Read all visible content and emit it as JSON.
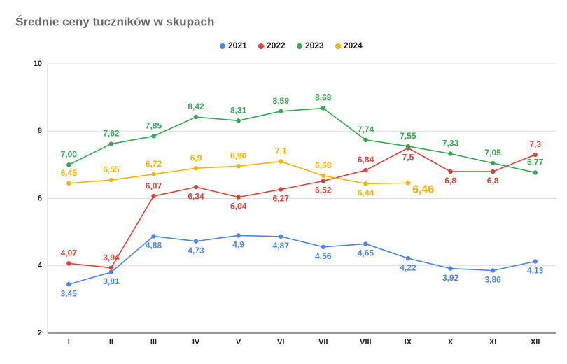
{
  "chart_data": {
    "type": "line",
    "title": "Średnie ceny tuczników w skupach",
    "categories": [
      "I",
      "II",
      "III",
      "IV",
      "V",
      "VI",
      "VII",
      "VIII",
      "IX",
      "X",
      "XI",
      "XII"
    ],
    "series": [
      {
        "name": "2021",
        "color": "#4a86e8",
        "values": [
          3.45,
          3.81,
          4.88,
          4.73,
          4.9,
          4.87,
          4.56,
          4.65,
          4.22,
          3.92,
          3.86,
          4.13
        ],
        "value_labels": [
          "3,45",
          "3,81",
          "4,88",
          "4,73",
          "4,9",
          "4,87",
          "4,56",
          "4,65",
          "4,22",
          "3,92",
          "3,86",
          "4,13"
        ]
      },
      {
        "name": "2022",
        "color": "#db4437",
        "values": [
          4.07,
          3.94,
          6.07,
          6.34,
          6.04,
          6.27,
          6.52,
          6.84,
          7.5,
          6.8,
          6.8,
          7.3
        ],
        "value_labels": [
          "4,07",
          "3,94",
          "6,07",
          "6,34",
          "6,04",
          "6,27",
          "6,52",
          "6,84",
          "7,5",
          "6,8",
          "6,8",
          "7,3"
        ]
      },
      {
        "name": "2023",
        "color": "#34a853",
        "values": [
          7.0,
          7.62,
          7.85,
          8.42,
          8.31,
          8.59,
          8.68,
          7.74,
          7.55,
          7.33,
          7.05,
          6.77
        ],
        "value_labels": [
          "7,00",
          "7,62",
          "7,85",
          "8,42",
          "8,31",
          "8,59",
          "8,68",
          "7,74",
          "7,55",
          "7,33",
          "7,05",
          "6,77"
        ]
      },
      {
        "name": "2024",
        "color": "#f4b400",
        "values": [
          6.45,
          6.55,
          6.72,
          6.9,
          6.96,
          7.1,
          6.68,
          6.44,
          6.46,
          null,
          null,
          null
        ],
        "value_labels": [
          "6,45",
          "6,55",
          "6,72",
          "6,9",
          "6,96",
          "7,1",
          "6,68",
          "6,44",
          "6,46",
          null,
          null,
          null
        ]
      }
    ],
    "ylim": [
      2,
      10
    ],
    "yticks": [
      2,
      4,
      6,
      8,
      10
    ],
    "grid": true,
    "legend": "top"
  }
}
